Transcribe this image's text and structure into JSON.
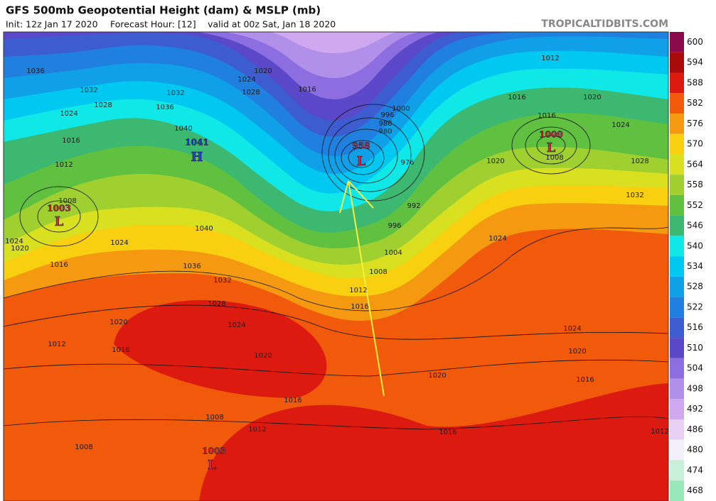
{
  "header": {
    "title": "GFS 500mb Geopotential Height (dam) & MSLP (mb)",
    "init": "Init: 12z Jan 17 2020",
    "forecast": "Forecast Hour: [12]",
    "valid": "valid at 00z Sat, Jan 18 2020",
    "site": "TROPICALTIDBITS.COM"
  },
  "colorbar": {
    "levels": [
      600,
      594,
      588,
      582,
      576,
      570,
      564,
      558,
      552,
      546,
      540,
      534,
      528,
      522,
      516,
      510,
      504,
      498,
      492,
      486,
      480,
      474,
      468
    ],
    "colors": [
      "#8a0a4a",
      "#a80a0a",
      "#dc1a10",
      "#f05a0a",
      "#f59a10",
      "#f8d010",
      "#d8e020",
      "#a0d030",
      "#60c040",
      "#3cb870",
      "#10e8e8",
      "#00c8f0",
      "#10a0e8",
      "#2080e0",
      "#3c5cd0",
      "#5a48c8",
      "#8c6ee0",
      "#b090e8",
      "#d0a8f0",
      "#e8d0f4",
      "#f4f0fa",
      "#c8f0d8",
      "#98e8b8"
    ]
  },
  "centers": [
    {
      "symbol": "L",
      "pressure": 958
    },
    {
      "symbol": "L",
      "pressure": 1000
    },
    {
      "symbol": "L",
      "pressure": 1003
    },
    {
      "symbol": "L",
      "pressure": 1003
    },
    {
      "symbol": "H",
      "pressure": 1041
    }
  ],
  "isobars": [
    1036,
    1032,
    1028,
    1024,
    1016,
    1012,
    1008,
    1024,
    1020,
    1016,
    1012,
    1020,
    1016,
    1008,
    1024,
    1040,
    1036,
    1032,
    1028,
    1024,
    1020,
    1016,
    1012,
    1008,
    1016,
    1012,
    1008,
    1004,
    996,
    992,
    1016,
    1020,
    1024,
    1020,
    1024,
    1020,
    1016,
    1012,
    1008,
    1016,
    1020,
    1016,
    1012,
    1024,
    1028,
    1032,
    1000,
    996,
    988,
    980,
    976,
    1016,
    1020,
    1024,
    1028,
    1032,
    1036,
    1040
  ]
}
